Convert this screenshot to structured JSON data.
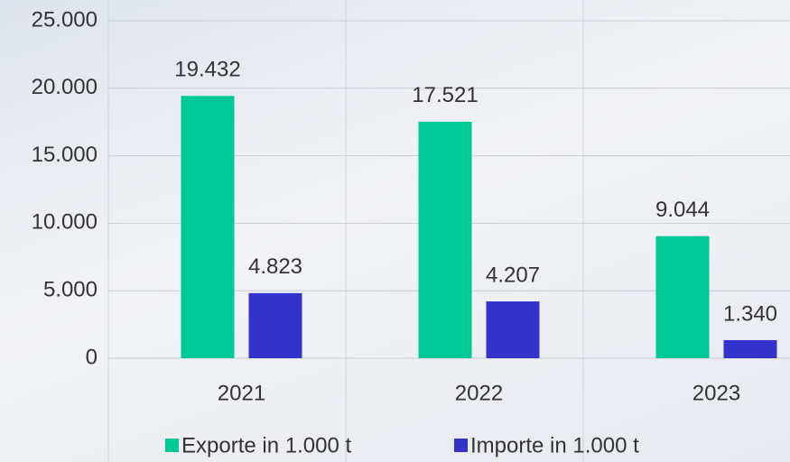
{
  "chart_data": {
    "type": "bar",
    "categories": [
      "2021",
      "2022",
      "2023"
    ],
    "series": [
      {
        "name": "Exporte in 1.000 t",
        "color": "#00c896",
        "values": [
          19432,
          17521,
          9044
        ],
        "value_labels": [
          "19.432",
          "17.521",
          "9.044"
        ]
      },
      {
        "name": "Importe in 1.000 t",
        "color": "#3333cc",
        "values": [
          4823,
          4207,
          1340
        ],
        "value_labels": [
          "4.823",
          "4.207",
          "1.340"
        ]
      }
    ],
    "ylim": [
      0,
      25000
    ],
    "yticks": [
      0,
      {
        "value": 5000,
        "label": "5.000"
      },
      {
        "value": 10000,
        "label": "10.000"
      },
      {
        "value": 15000,
        "label": "15.000"
      },
      {
        "value": 20000,
        "label": "20.000"
      },
      {
        "value": 25000,
        "label": "25.000"
      }
    ],
    "grid": true,
    "legend": "bottom"
  }
}
